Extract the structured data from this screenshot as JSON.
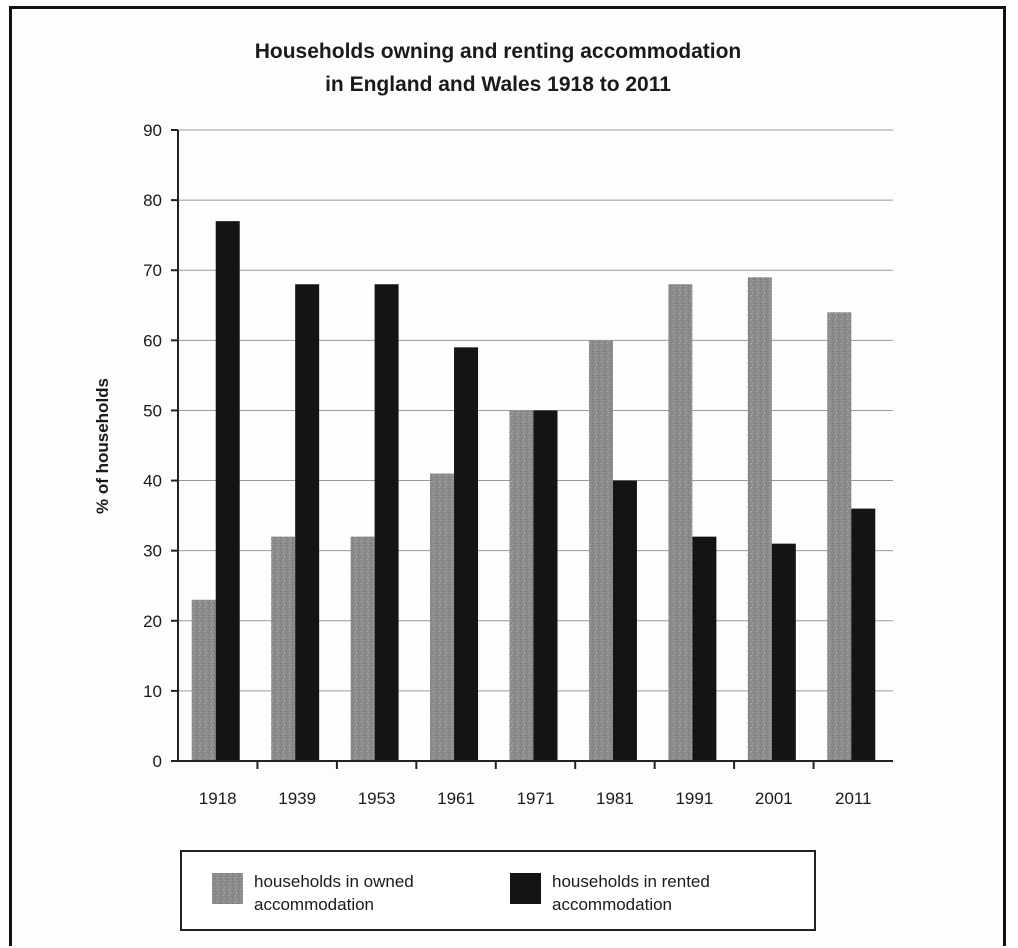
{
  "chart_data": {
    "type": "bar",
    "title_lines": [
      "Households owning and renting accommodation",
      "in England and Wales 1918 to 2011"
    ],
    "xlabel": "",
    "ylabel": "% of households",
    "ylim": [
      0,
      90
    ],
    "yticks": [
      0,
      10,
      20,
      30,
      40,
      50,
      60,
      70,
      80,
      90
    ],
    "grid": true,
    "legend_position": "bottom",
    "categories": [
      "1918",
      "1939",
      "1953",
      "1961",
      "1971",
      "1981",
      "1991",
      "2001",
      "2011"
    ],
    "series": [
      {
        "name_lines": [
          "households in owned",
          "accommodation"
        ],
        "color": "#8c8c8c",
        "values": [
          23,
          32,
          32,
          41,
          50,
          60,
          68,
          69,
          64
        ]
      },
      {
        "name_lines": [
          "households in rented",
          "accommodation"
        ],
        "color": "#141414",
        "values": [
          77,
          68,
          68,
          59,
          50,
          40,
          32,
          31,
          36
        ]
      }
    ]
  }
}
